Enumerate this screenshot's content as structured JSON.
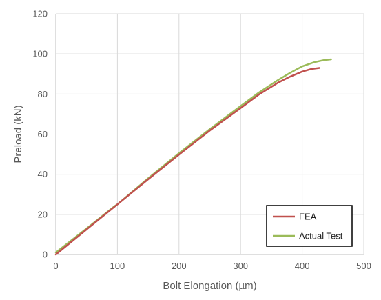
{
  "chart_data": {
    "type": "line",
    "title": "",
    "xlabel": "Bolt Elongation (µm)",
    "ylabel": "Preload (kN)",
    "xlim": [
      0,
      500
    ],
    "ylim": [
      0,
      120
    ],
    "x_ticks": [
      0,
      100,
      200,
      300,
      400,
      500
    ],
    "y_ticks": [
      0,
      20,
      40,
      60,
      80,
      100,
      120
    ],
    "x_tick_labels": [
      "0",
      "100",
      "200",
      "300",
      "400",
      "500"
    ],
    "y_tick_labels": [
      "0",
      "20",
      "40",
      "60",
      "80",
      "100",
      "120"
    ],
    "grid": true,
    "legend_position": "bottom-right",
    "series": [
      {
        "name": "FEA",
        "color": "#c0504d",
        "x": [
          0,
          50,
          100,
          150,
          200,
          250,
          300,
          330,
          360,
          380,
          400,
          415,
          428
        ],
        "y": [
          0,
          12.5,
          25,
          37.5,
          49.8,
          61.8,
          73.0,
          79.8,
          85.5,
          88.6,
          91.2,
          92.5,
          93.0
        ]
      },
      {
        "name": "Actual Test",
        "color": "#9bbb59",
        "x": [
          0,
          50,
          95,
          100,
          150,
          200,
          250,
          300,
          330,
          360,
          380,
          400,
          420,
          435,
          447
        ],
        "y": [
          1,
          13,
          24,
          25,
          38,
          50.5,
          62.5,
          74.0,
          80.8,
          86.8,
          90.5,
          93.8,
          95.9,
          96.9,
          97.3
        ]
      }
    ]
  }
}
